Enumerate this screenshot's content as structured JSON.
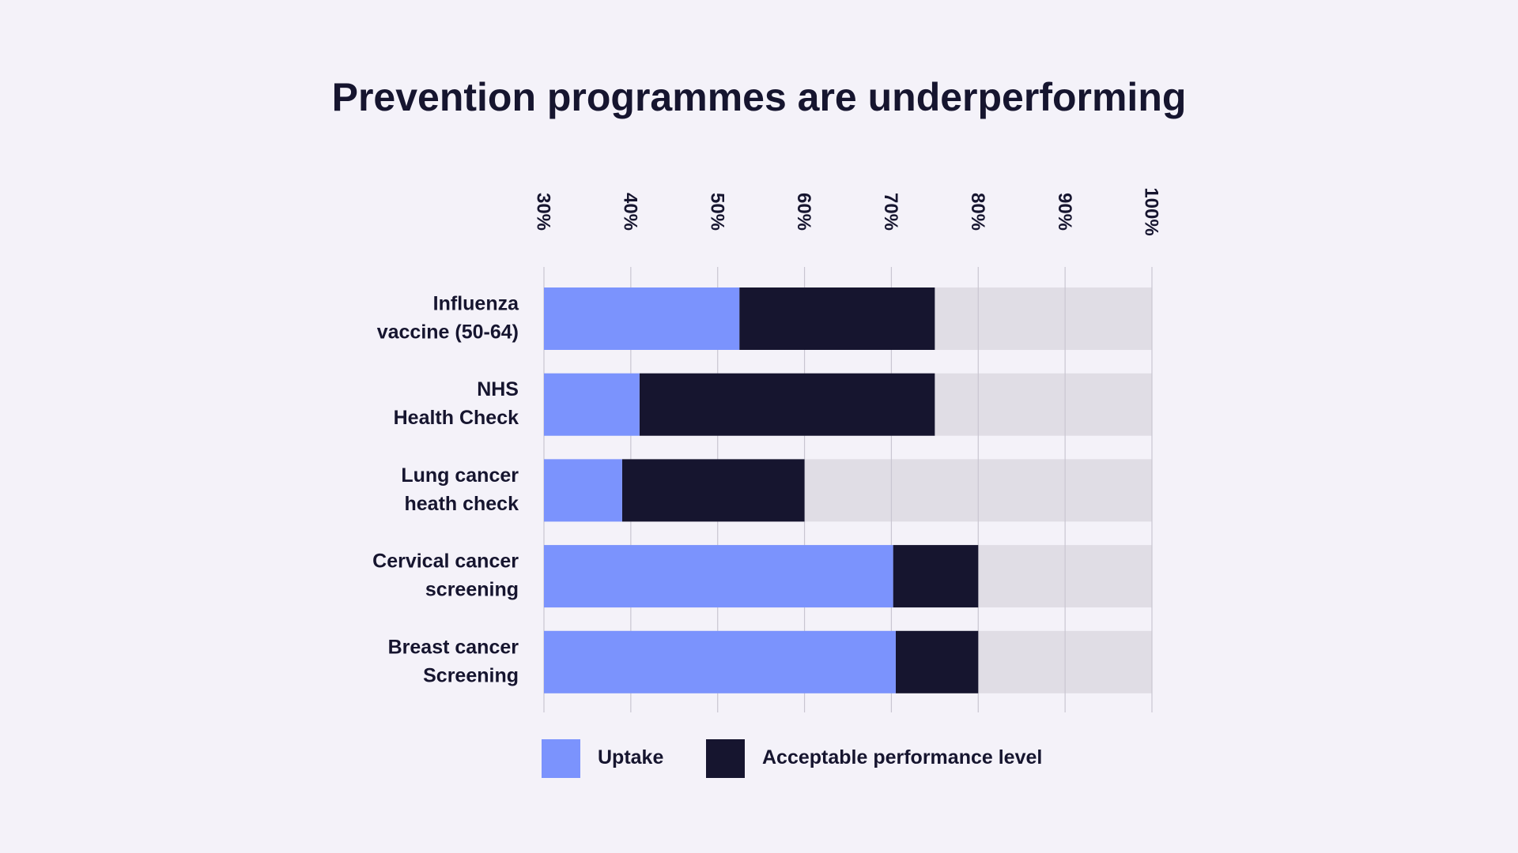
{
  "chart_data": {
    "type": "bar",
    "orientation": "horizontal",
    "stacked_ranges": true,
    "title": "Prevention programmes are underperforming",
    "x_ticks": [
      "30%",
      "40%",
      "50%",
      "60%",
      "70%",
      "80%",
      "90%",
      "100%"
    ],
    "xlim": [
      30,
      100
    ],
    "grid": true,
    "categories": [
      [
        "Influenza",
        "vaccine (50-64)"
      ],
      [
        "NHS",
        "Health Check"
      ],
      [
        "Lung cancer",
        "heath check"
      ],
      [
        "Cervical cancer",
        "screening"
      ],
      [
        "Breast cancer",
        "Screening"
      ]
    ],
    "series": [
      {
        "name": "Uptake",
        "values": [
          52.5,
          41,
          39,
          70.2,
          70.5
        ],
        "color": "#7b93fd"
      },
      {
        "name": "Acceptable performance level",
        "values": [
          75,
          75,
          60,
          80,
          80
        ],
        "color": "#16152f"
      }
    ],
    "background_max": 100,
    "background_color": "#e0dde5",
    "legend_position": "bottom"
  }
}
